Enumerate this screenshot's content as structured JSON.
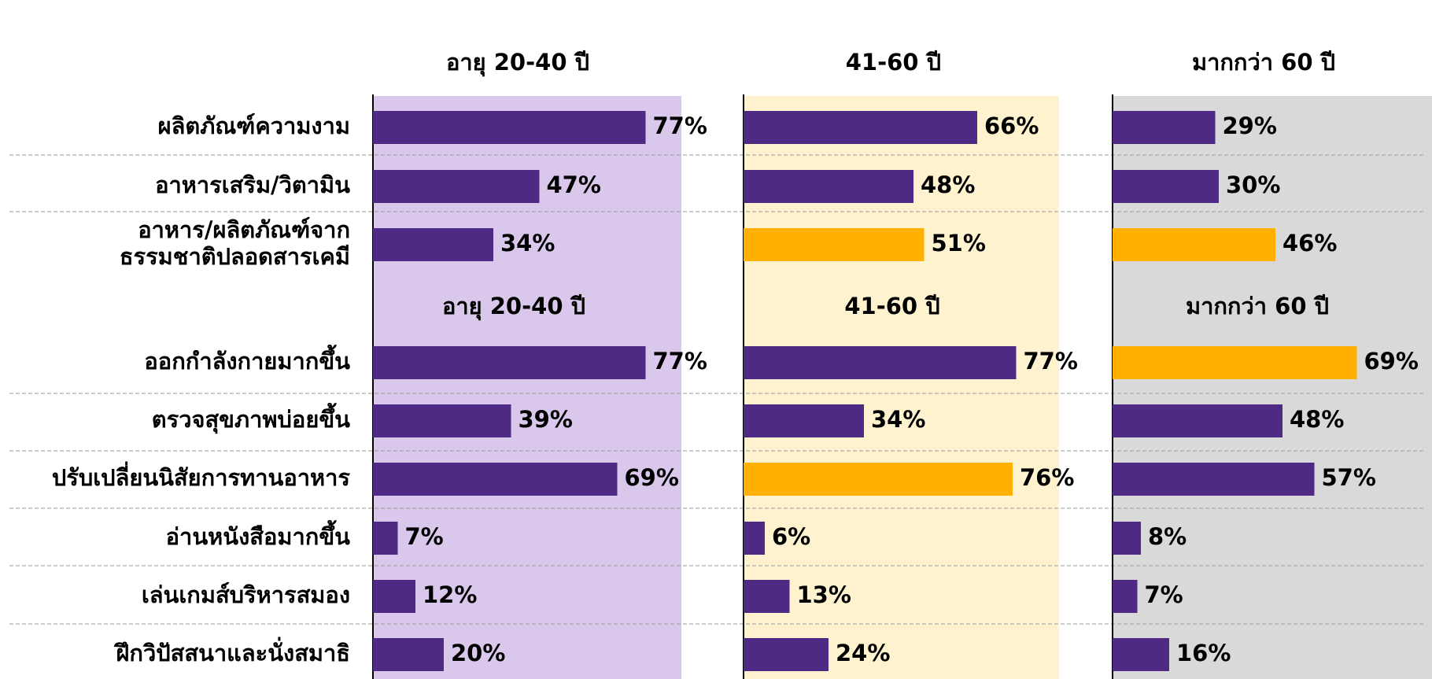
{
  "chart_data": {
    "type": "bar",
    "categories": [
      "ผลิตภัณฑ์ความงาม",
      "อาหารเสริม/วิตามิน",
      "อาหาร/ผลิตภัณฑ์จาก\nธรรมชาติปลอดสารเคมี",
      "ออกกำลังกายมากขึ้น",
      "ตรวจสุขภาพบ่อยขึ้น",
      "ปรับเปลี่ยนนิสัยการทานอาหาร",
      "อ่านหนังสือมากขึ้น",
      "เล่นเกมส์บริหารสมอง",
      "ฝึกวิปัสสนาและนั่งสมาธิ"
    ],
    "series": [
      {
        "name": "อายุ 20-40 ปี",
        "background": "#d9c8ec",
        "values": [
          77,
          47,
          34,
          77,
          39,
          69,
          7,
          12,
          20
        ],
        "value_labels": [
          "77%",
          "47%",
          "34%",
          "77%",
          "39%",
          "69%",
          "7%",
          "12%",
          "20%"
        ],
        "colors": [
          "#4e2a84",
          "#4e2a84",
          "#4e2a84",
          "#4e2a84",
          "#4e2a84",
          "#4e2a84",
          "#4e2a84",
          "#4e2a84",
          "#4e2a84"
        ]
      },
      {
        "name": "41-60 ปี",
        "background": "#fff2cf",
        "values": [
          66,
          48,
          51,
          77,
          34,
          76,
          6,
          13,
          24
        ],
        "value_labels": [
          "66%",
          "48%",
          "51%",
          "77%",
          "34%",
          "76%",
          "6%",
          "13%",
          "24%"
        ],
        "colors": [
          "#4e2a84",
          "#4e2a84",
          "#ffb000",
          "#4e2a84",
          "#4e2a84",
          "#ffb000",
          "#4e2a84",
          "#4e2a84",
          "#4e2a84"
        ]
      },
      {
        "name": "มากกว่า 60 ปี",
        "background": "#d9d9d9",
        "values": [
          29,
          30,
          46,
          69,
          48,
          57,
          8,
          7,
          16
        ],
        "value_labels": [
          "29%",
          "30%",
          "46%",
          "69%",
          "48%",
          "57%",
          "8%",
          "7%",
          "16%"
        ],
        "colors": [
          "#4e2a84",
          "#4e2a84",
          "#ffb000",
          "#ffb000",
          "#4e2a84",
          "#4e2a84",
          "#4e2a84",
          "#4e2a84",
          "#4e2a84"
        ]
      }
    ]
  }
}
